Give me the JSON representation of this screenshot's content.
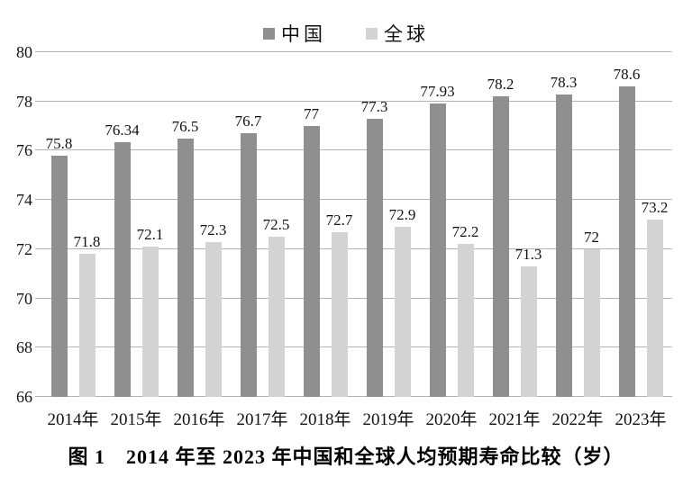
{
  "figure": {
    "caption": "图 1　2014 年至 2023 年中国和全球人均预期寿命比较（岁）"
  },
  "colors": {
    "china_bar": "#8f8f8f",
    "global_bar": "#d3d3d3",
    "gridline": "#b3b3b3",
    "text": "#111111"
  },
  "chart_data": {
    "type": "bar",
    "title": "",
    "xlabel": "",
    "ylabel": "",
    "categories": [
      "2014年",
      "2015年",
      "2016年",
      "2017年",
      "2018年",
      "2019年",
      "2020年",
      "2021年",
      "2022年",
      "2023年"
    ],
    "series": [
      {
        "name": "中国",
        "color": "#8f8f8f",
        "values": [
          75.8,
          76.34,
          76.5,
          76.7,
          77,
          77.3,
          77.93,
          78.2,
          78.3,
          78.6
        ]
      },
      {
        "name": "全球",
        "color": "#d3d3d3",
        "values": [
          71.8,
          72.1,
          72.3,
          72.5,
          72.7,
          72.9,
          72.2,
          71.3,
          72,
          73.2
        ]
      }
    ],
    "ylim": [
      66,
      80
    ],
    "yticks": [
      66,
      68,
      70,
      72,
      74,
      76,
      78,
      80
    ],
    "grid": true,
    "data_labels": true,
    "legend_position": "top-center"
  }
}
